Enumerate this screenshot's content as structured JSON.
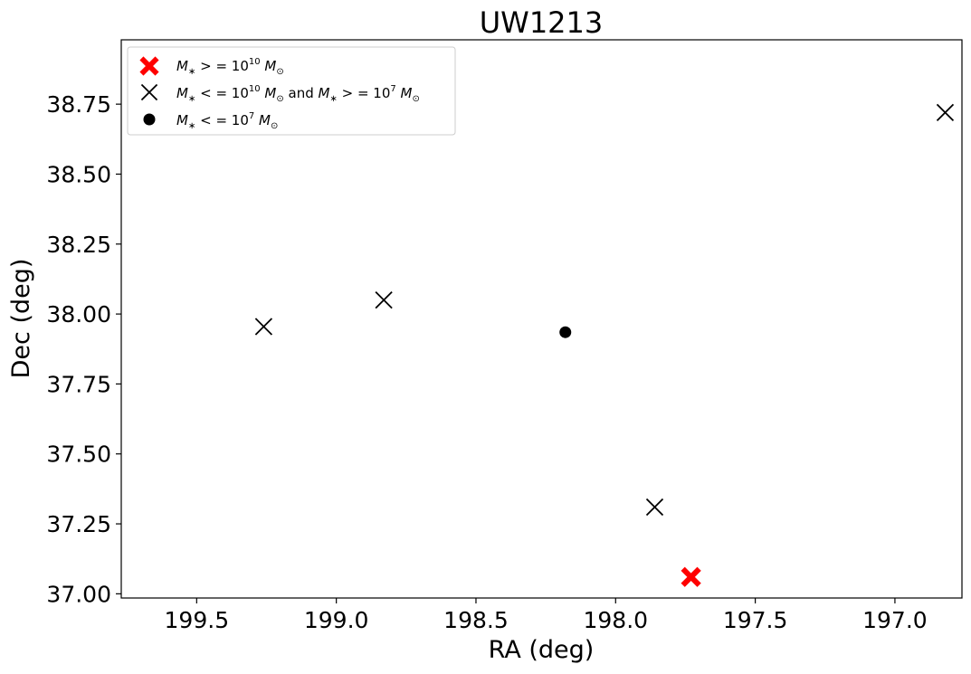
{
  "chart_data": {
    "type": "scatter",
    "title": "UW1213",
    "xlabel": "RA (deg)",
    "ylabel": "Dec (deg)",
    "x_inverted": true,
    "xlim": [
      199.77,
      196.76
    ],
    "ylim": [
      36.985,
      38.98
    ],
    "x_ticks": [
      {
        "value": 199.5,
        "label": "199.5"
      },
      {
        "value": 199.0,
        "label": "199.0"
      },
      {
        "value": 198.5,
        "label": "198.5"
      },
      {
        "value": 198.0,
        "label": "198.0"
      },
      {
        "value": 197.5,
        "label": "197.5"
      },
      {
        "value": 197.0,
        "label": "197.0"
      }
    ],
    "y_ticks": [
      {
        "value": 37.0,
        "label": "37.00"
      },
      {
        "value": 37.25,
        "label": "37.25"
      },
      {
        "value": 37.5,
        "label": "37.50"
      },
      {
        "value": 37.75,
        "label": "37.75"
      },
      {
        "value": 38.0,
        "label": "38.00"
      },
      {
        "value": 38.25,
        "label": "38.25"
      },
      {
        "value": 38.5,
        "label": "38.50"
      },
      {
        "value": 38.75,
        "label": "38.75"
      }
    ],
    "grid": false,
    "legend_position": "upper-left",
    "series": [
      {
        "name": "M* >= 10^10 M⊙",
        "marker": "filled-x",
        "color": "#ff0000",
        "points": [
          {
            "x": 197.73,
            "y": 37.06
          }
        ]
      },
      {
        "name": "M* <= 10^10 M⊙ and M* >= 10^7 M⊙",
        "marker": "x",
        "color": "#000000",
        "points": [
          {
            "x": 199.26,
            "y": 37.955
          },
          {
            "x": 198.83,
            "y": 38.05
          },
          {
            "x": 197.86,
            "y": 37.31
          },
          {
            "x": 196.82,
            "y": 38.72
          }
        ]
      },
      {
        "name": "M* <= 10^7 M⊙",
        "marker": "circle",
        "color": "#000000",
        "points": [
          {
            "x": 198.18,
            "y": 37.935
          }
        ]
      }
    ]
  }
}
